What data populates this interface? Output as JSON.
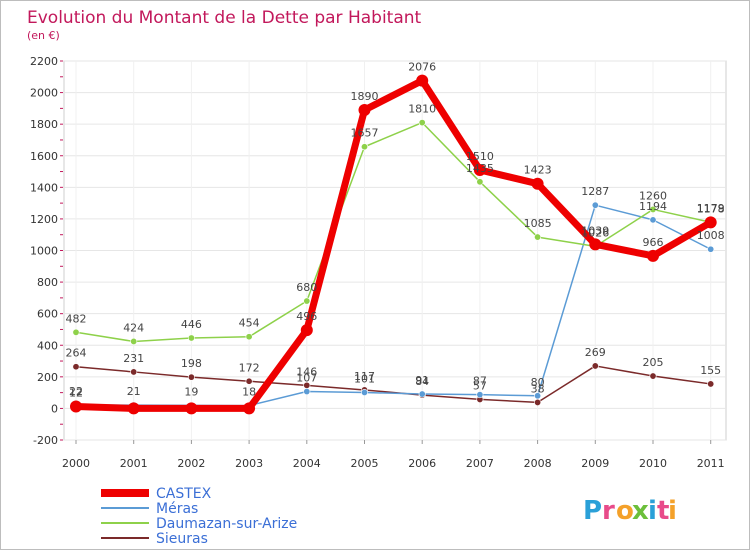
{
  "chart_data": {
    "type": "line",
    "title": "Evolution du Montant de la Dette par Habitant",
    "subtitle": "(en €)",
    "xlabel": "",
    "ylabel": "",
    "ylim": [
      -200,
      2200
    ],
    "yticks": [
      -200,
      0,
      200,
      400,
      600,
      800,
      1000,
      1200,
      1400,
      1600,
      1800,
      2000,
      2200
    ],
    "categories": [
      "2000",
      "2001",
      "2002",
      "2003",
      "2004",
      "2005",
      "2006",
      "2007",
      "2008",
      "2009",
      "2010",
      "2011"
    ],
    "grid": true,
    "legend_position": "bottom-left",
    "series": [
      {
        "name": "CASTEX",
        "color": "#ee0000",
        "values": [
          12,
          0,
          0,
          0,
          496,
          1890,
          2076,
          1510,
          1423,
          1039,
          966,
          1178
        ],
        "labels": [
          "12",
          "",
          "",
          "",
          "496",
          "1890",
          "2076",
          "1510",
          "1423",
          "1039",
          "966",
          "1178"
        ]
      },
      {
        "name": "Méras",
        "color": "#5b9bd5",
        "values": [
          22,
          21,
          19,
          18,
          107,
          101,
          91,
          87,
          80,
          1287,
          1194,
          1008
        ],
        "labels": [
          "22",
          "21",
          "19",
          "18",
          "107",
          "101",
          "91",
          "87",
          "80",
          "1287",
          "1194",
          "1008"
        ]
      },
      {
        "name": "Daumazan-sur-Arize",
        "color": "#8ed14a",
        "values": [
          482,
          424,
          446,
          454,
          680,
          1657,
          1810,
          1435,
          1085,
          1026,
          1260,
          1179
        ],
        "labels": [
          "482",
          "424",
          "446",
          "454",
          "680",
          "1657",
          "1810",
          "1435",
          "1085",
          "1026",
          "1260",
          "1179"
        ]
      },
      {
        "name": "Sieuras",
        "color": "#7b2a2a",
        "values": [
          264,
          231,
          198,
          172,
          146,
          117,
          84,
          57,
          38,
          269,
          205,
          155
        ],
        "labels": [
          "264",
          "231",
          "198",
          "172",
          "146",
          "117",
          "84",
          "57",
          "38",
          "269",
          "205",
          "155"
        ]
      }
    ]
  },
  "logo": {
    "text": "Proxiti",
    "colors": [
      "#2aa0d8",
      "#e84b8a",
      "#f4a12a",
      "#6cbf3b",
      "#2aa0d8",
      "#e84b8a",
      "#f4a12a"
    ]
  }
}
